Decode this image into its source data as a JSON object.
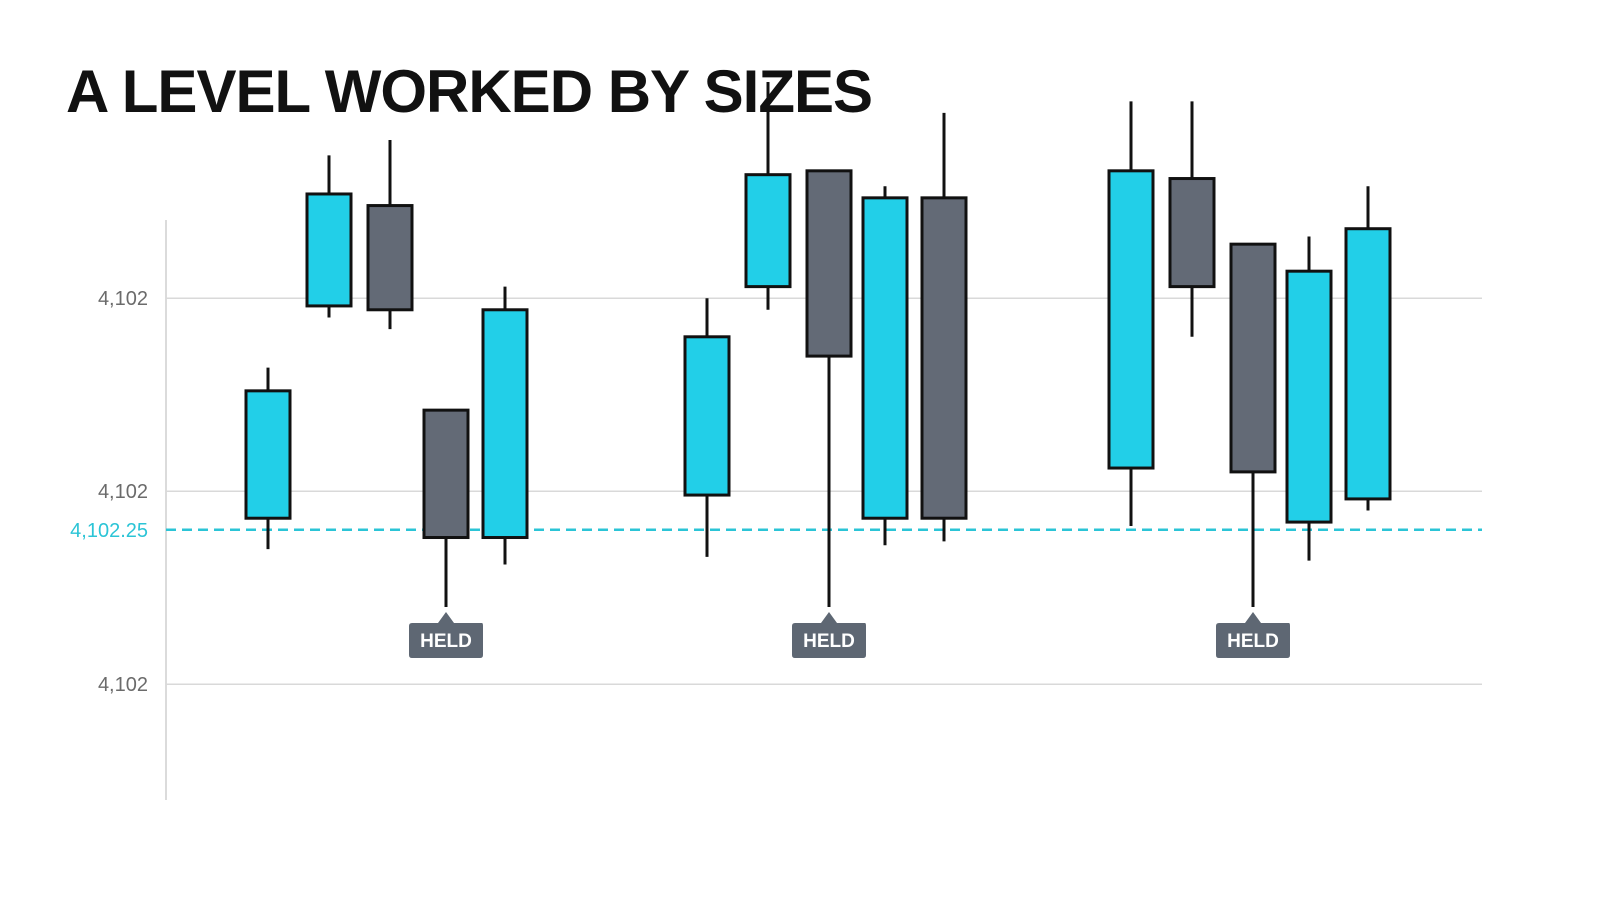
{
  "title": "A LEVEL WORKED BY SIZES",
  "colors": {
    "bull": "#22cfe8",
    "bear": "#636a76",
    "outline": "#111111",
    "grid": "#d9d9d9",
    "axis": "#cfcfcf",
    "level": "#2bc4d6",
    "tag": "#5e6773"
  },
  "chart_data": {
    "type": "candlestick",
    "title": "A LEVEL WORKED BY SIZES",
    "ylim": [
      0,
      1
    ],
    "y_ticks": [
      {
        "label": "4,102",
        "value": 0.8
      },
      {
        "label": "4,102",
        "value": 0.3
      },
      {
        "label": "4,102",
        "value": -0.2
      }
    ],
    "level": {
      "label": "4,102.25",
      "value": 0.2
    },
    "grid": true,
    "groups": [
      {
        "tag": "HELD",
        "candles": [
          {
            "open": 0.23,
            "close": 0.56,
            "high": 0.62,
            "low": 0.15,
            "dir": "up"
          },
          {
            "open": 0.78,
            "close": 1.07,
            "high": 1.17,
            "low": 0.75,
            "dir": "up"
          },
          {
            "open": 1.04,
            "close": 0.77,
            "high": 1.21,
            "low": 0.72,
            "dir": "down"
          },
          {
            "open": 0.51,
            "close": 0.18,
            "high": 0.51,
            "low": 0.0,
            "dir": "down"
          },
          {
            "open": 0.18,
            "close": 0.77,
            "high": 0.83,
            "low": 0.11,
            "dir": "up"
          }
        ]
      },
      {
        "tag": "HELD",
        "candles": [
          {
            "open": 0.29,
            "close": 0.7,
            "high": 0.8,
            "low": 0.13,
            "dir": "up"
          },
          {
            "open": 0.83,
            "close": 1.12,
            "high": 1.36,
            "low": 0.77,
            "dir": "up"
          },
          {
            "open": 1.13,
            "close": 0.65,
            "high": 1.13,
            "low": 0.0,
            "dir": "down"
          },
          {
            "open": 0.23,
            "close": 1.06,
            "high": 1.09,
            "low": 0.16,
            "dir": "up"
          },
          {
            "open": 1.06,
            "close": 0.23,
            "high": 1.28,
            "low": 0.17,
            "dir": "down"
          }
        ]
      },
      {
        "tag": "HELD",
        "candles": [
          {
            "open": 0.36,
            "close": 1.13,
            "high": 1.31,
            "low": 0.21,
            "dir": "up"
          },
          {
            "open": 1.11,
            "close": 0.83,
            "high": 1.31,
            "low": 0.7,
            "dir": "down"
          },
          {
            "open": 0.94,
            "close": 0.35,
            "high": 0.94,
            "low": 0.0,
            "dir": "down"
          },
          {
            "open": 0.22,
            "close": 0.87,
            "high": 0.96,
            "low": 0.12,
            "dir": "up"
          },
          {
            "open": 0.28,
            "close": 0.98,
            "high": 1.09,
            "low": 0.25,
            "dir": "up"
          }
        ]
      }
    ]
  }
}
